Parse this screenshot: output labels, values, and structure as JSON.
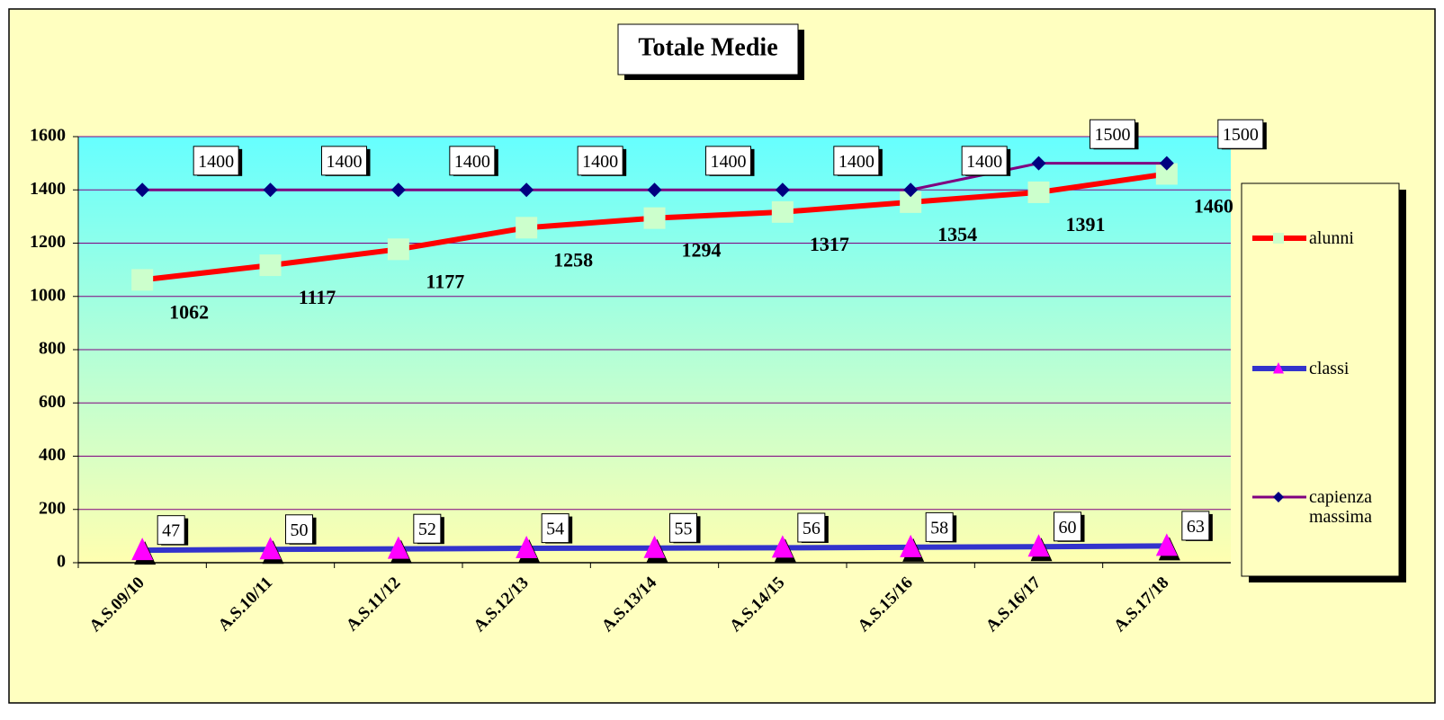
{
  "chart_data": {
    "type": "line",
    "title": "Totale Medie",
    "categories": [
      "A.S.09/10",
      "A.S.10/11",
      "A.S.11/12",
      "A.S.12/13",
      "A.S.13/14",
      "A.S.14/15",
      "A.S.15/16",
      "A.S.16/17",
      "A.S.17/18"
    ],
    "series": [
      {
        "name": "alunni",
        "color": "#ff0000",
        "marker": "square",
        "marker_color": "#ccffcc",
        "values": [
          1062,
          1117,
          1177,
          1258,
          1294,
          1317,
          1354,
          1391,
          1460
        ]
      },
      {
        "name": "classi",
        "color": "#3333cc",
        "marker": "triangle",
        "marker_color": "#ff00ff",
        "values": [
          47,
          50,
          52,
          54,
          55,
          56,
          58,
          60,
          63
        ]
      },
      {
        "name": "capienza massima",
        "color": "#800080",
        "marker": "diamond",
        "marker_color": "#000080",
        "values": [
          1400,
          1400,
          1400,
          1400,
          1400,
          1400,
          1400,
          1500,
          1500
        ]
      }
    ],
    "ylim": [
      0,
      1600
    ],
    "yticks": [
      0,
      200,
      400,
      600,
      800,
      1000,
      1200,
      1400,
      1600
    ],
    "grid": true,
    "legend": "right"
  }
}
